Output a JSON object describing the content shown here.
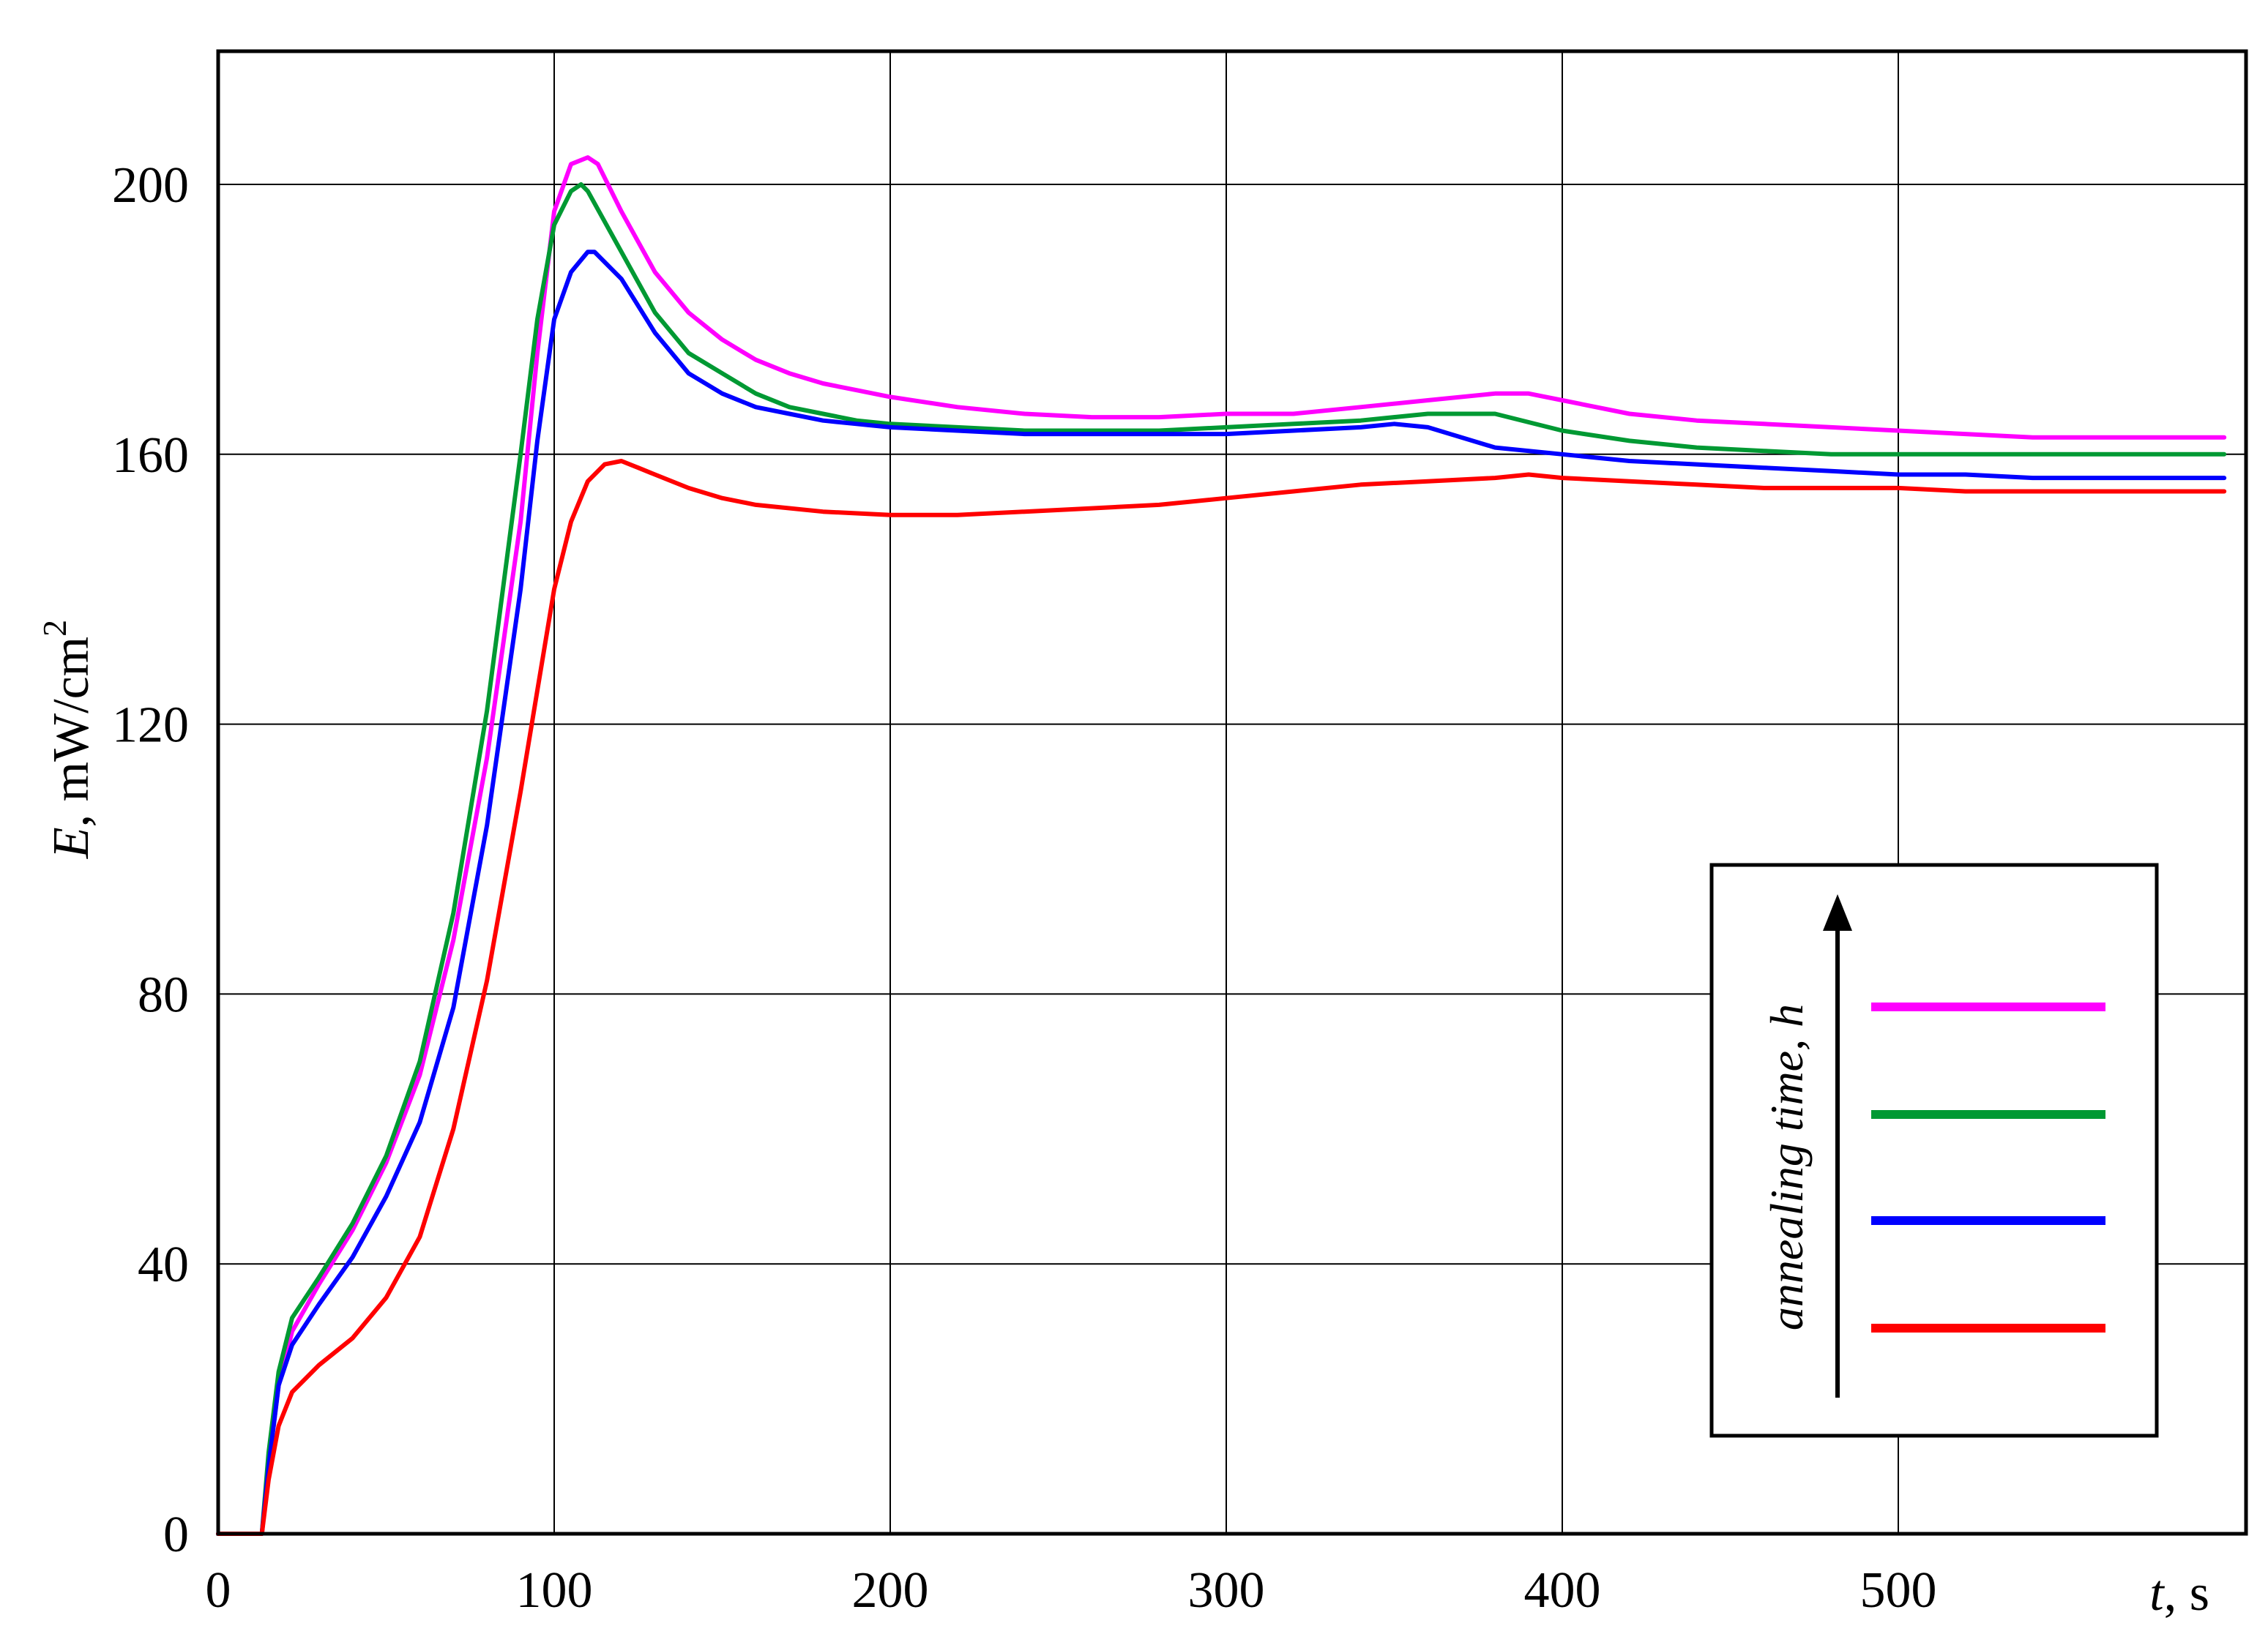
{
  "chart_data": {
    "type": "line",
    "title": "",
    "xlabel": {
      "var": "t",
      "unit": ", s"
    },
    "ylabel": {
      "var": "E",
      "unit": ", mW/cm",
      "unit_sup": "2"
    },
    "xlim": [
      0,
      600
    ],
    "ylim": [
      0,
      220
    ],
    "x_ticks": [
      0,
      100,
      200,
      300,
      400,
      500
    ],
    "y_ticks": [
      0,
      40,
      80,
      120,
      160,
      200
    ],
    "grid": true,
    "legend": {
      "placement": "bottom-right",
      "caption": "annealing time, h",
      "order_top_to_bottom": [
        "#ff00ff",
        "#009933",
        "#0000ff",
        "#ff0000"
      ]
    },
    "series": [
      {
        "color": "#ff00ff",
        "x": [
          0,
          13,
          15,
          18,
          22,
          30,
          40,
          50,
          60,
          70,
          80,
          90,
          95,
          100,
          105,
          110,
          113,
          120,
          130,
          140,
          150,
          160,
          170,
          180,
          190,
          200,
          220,
          240,
          260,
          280,
          300,
          320,
          340,
          360,
          380,
          390,
          400,
          420,
          440,
          460,
          480,
          500,
          520,
          540,
          560,
          570,
          597
        ],
        "y": [
          0,
          0,
          10,
          22,
          30,
          37,
          45,
          55,
          68,
          88,
          115,
          150,
          175,
          196,
          203,
          204,
          203,
          196,
          187,
          181,
          177,
          174,
          172,
          170.5,
          169.5,
          168.5,
          167,
          166,
          165.5,
          165.5,
          166,
          166,
          167,
          168,
          169,
          169,
          168,
          166,
          165,
          164.5,
          164,
          163.5,
          163,
          162.5,
          162.5,
          162.5,
          162.5
        ]
      },
      {
        "color": "#009933",
        "x": [
          0,
          13,
          15,
          18,
          22,
          30,
          40,
          50,
          60,
          70,
          80,
          90,
          95,
          100,
          105,
          108,
          110,
          120,
          130,
          140,
          150,
          160,
          170,
          180,
          190,
          200,
          220,
          240,
          260,
          280,
          300,
          320,
          340,
          360,
          380,
          400,
          420,
          440,
          460,
          480,
          500,
          520,
          540,
          560,
          597
        ],
        "y": [
          0,
          0,
          12,
          24,
          32,
          38,
          46,
          56,
          70,
          92,
          122,
          160,
          180,
          194,
          199,
          200,
          199,
          190,
          181,
          175,
          172,
          169,
          167,
          166,
          165,
          164.5,
          164,
          163.5,
          163.5,
          163.5,
          164,
          164.5,
          165,
          166,
          166,
          163.5,
          162,
          161,
          160.5,
          160,
          160,
          160,
          160,
          160,
          160
        ]
      },
      {
        "color": "#0000ff",
        "x": [
          0,
          13,
          15,
          18,
          22,
          30,
          40,
          50,
          60,
          70,
          80,
          90,
          95,
          100,
          105,
          110,
          112,
          120,
          130,
          140,
          150,
          160,
          170,
          180,
          190,
          200,
          220,
          240,
          260,
          280,
          300,
          320,
          340,
          350,
          360,
          380,
          400,
          420,
          440,
          460,
          480,
          500,
          520,
          540,
          560,
          597
        ],
        "y": [
          0,
          0,
          10,
          22,
          28,
          34,
          41,
          50,
          61,
          78,
          105,
          140,
          162,
          180,
          187,
          190,
          190,
          186,
          178,
          172,
          169,
          167,
          166,
          165,
          164.5,
          164,
          163.5,
          163,
          163,
          163,
          163,
          163.5,
          164,
          164.5,
          164,
          161,
          160,
          159,
          158.5,
          158,
          157.5,
          157,
          157,
          156.5,
          156.5,
          156.5
        ]
      },
      {
        "color": "#ff0000",
        "x": [
          0,
          13,
          15,
          18,
          22,
          30,
          40,
          50,
          60,
          70,
          80,
          90,
          95,
          100,
          105,
          110,
          115,
          120,
          125,
          130,
          140,
          150,
          160,
          180,
          200,
          220,
          240,
          260,
          280,
          300,
          320,
          340,
          360,
          380,
          390,
          400,
          420,
          440,
          460,
          480,
          500,
          520,
          540,
          560,
          597
        ],
        "y": [
          0,
          0,
          8,
          16,
          21,
          25,
          29,
          35,
          44,
          60,
          82,
          110,
          125,
          140,
          150,
          156,
          158.5,
          159,
          158,
          157,
          155,
          153.5,
          152.5,
          151.5,
          151,
          151,
          151.5,
          152,
          152.5,
          153.5,
          154.5,
          155.5,
          156,
          156.5,
          157,
          156.5,
          156,
          155.5,
          155,
          155,
          155,
          154.5,
          154.5,
          154.5,
          154.5
        ]
      }
    ]
  }
}
